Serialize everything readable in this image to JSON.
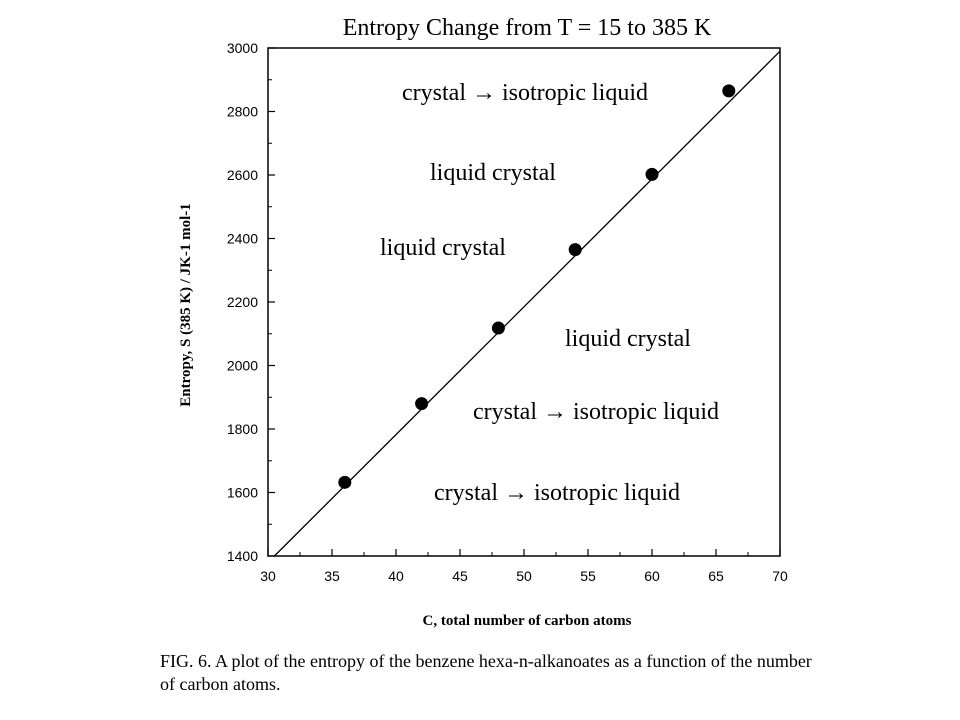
{
  "chart_data": {
    "type": "scatter",
    "title": "Entropy Change from T = 15 to 385 K",
    "xlabel": "C, total number of carbon atoms",
    "ylabel": "Entropy, S (385 K) / JK-1 mol-1",
    "xlim": [
      30,
      70
    ],
    "ylim": [
      1400,
      3000
    ],
    "xticks": [
      "30",
      "35",
      "40",
      "45",
      "50",
      "55",
      "60",
      "65",
      "70"
    ],
    "yticks": [
      "1400",
      "1600",
      "1800",
      "2000",
      "2200",
      "2400",
      "2600",
      "2800",
      "3000"
    ],
    "grid": false,
    "series": [
      {
        "x": [
          36,
          42,
          48,
          54,
          60,
          66
        ],
        "y": [
          1632,
          1880,
          2118,
          2365,
          2602,
          2865
        ]
      }
    ],
    "fit_line": {
      "x": [
        30.5,
        70
      ],
      "y": [
        1400,
        2990
      ]
    },
    "annotations": [
      {
        "text": "crystal → isotropic liquid",
        "near": "C = 66"
      },
      {
        "text": "liquid crystal",
        "near": "C = 60"
      },
      {
        "text": "liquid crystal",
        "near": "C = 54"
      },
      {
        "text": "liquid crystal",
        "near": "C = 48"
      },
      {
        "text": "crystal → isotropic liquid",
        "near": "C = 42"
      },
      {
        "text": "crystal → isotropic liquid",
        "near": "C = 36"
      }
    ]
  },
  "caption": "FIG. 6. A plot of the entropy of the benzene hexa-n-alkanoates as a function of the number of carbon atoms."
}
